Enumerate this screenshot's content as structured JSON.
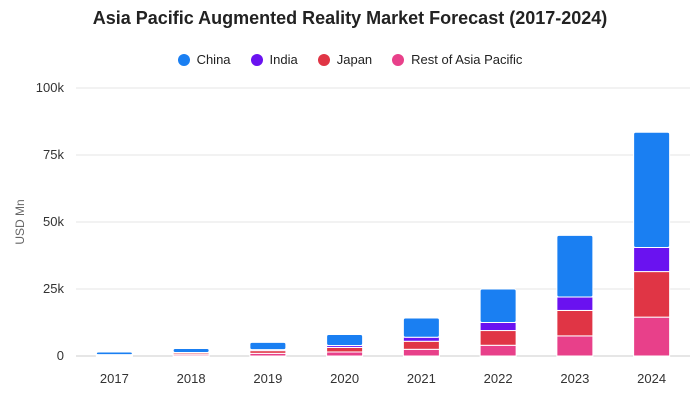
{
  "chart_data": {
    "type": "bar",
    "stacked": true,
    "title": "Asia Pacific Augmented Reality Market Forecast (2017-2024)",
    "ylabel": "USD Mn",
    "xlabel": "",
    "categories": [
      "2017",
      "2018",
      "2019",
      "2020",
      "2021",
      "2022",
      "2023",
      "2024"
    ],
    "ylim": [
      0,
      100000
    ],
    "yticks": [
      0,
      25000,
      50000,
      75000,
      100000
    ],
    "ytick_labels": [
      "0",
      "25k",
      "50k",
      "75k",
      "100k"
    ],
    "grid": true,
    "legend_position": "top",
    "series": [
      {
        "name": "Rest of Asia Pacific",
        "color": "#e8408a",
        "values": [
          200,
          500,
          1000,
          1500,
          2500,
          4000,
          7500,
          14500
        ]
      },
      {
        "name": "Japan",
        "color": "#e03545",
        "values": [
          200,
          600,
          1000,
          1700,
          3000,
          5500,
          9500,
          17000
        ]
      },
      {
        "name": "India",
        "color": "#6a12f0",
        "values": [
          100,
          200,
          400,
          700,
          1500,
          3000,
          5000,
          9000
        ]
      },
      {
        "name": "China",
        "color": "#1a7ff2",
        "values": [
          1000,
          1500,
          2700,
          4100,
          7200,
          12500,
          23000,
          43000
        ]
      }
    ],
    "legend_order": [
      "China",
      "India",
      "Japan",
      "Rest of Asia Pacific"
    ]
  }
}
